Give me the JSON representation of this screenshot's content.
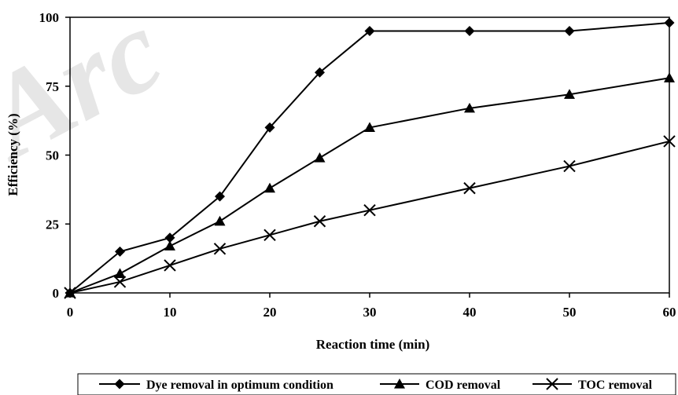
{
  "chart_data": {
    "type": "line",
    "watermark": "Arc",
    "xlabel": "Reaction time (min)",
    "ylabel": "Efficiency (%)",
    "xlim": [
      0,
      60
    ],
    "ylim": [
      0,
      100
    ],
    "x_ticks": [
      0,
      10,
      20,
      30,
      40,
      50,
      60
    ],
    "y_ticks": [
      0,
      25,
      50,
      75,
      100
    ],
    "grid": false,
    "legend_position": "bottom",
    "series": [
      {
        "name": "Dye removal in optimum condition",
        "marker": "diamond",
        "x": [
          0,
          5,
          10,
          15,
          20,
          25,
          30,
          40,
          50,
          60
        ],
        "values": [
          0,
          15,
          20,
          35,
          60,
          80,
          95,
          95,
          95,
          98
        ]
      },
      {
        "name": "COD removal",
        "marker": "triangle",
        "x": [
          0,
          5,
          10,
          15,
          20,
          25,
          30,
          40,
          50,
          60
        ],
        "values": [
          0,
          7,
          17,
          26,
          38,
          49,
          60,
          67,
          72,
          78
        ]
      },
      {
        "name": "TOC removal",
        "marker": "cross",
        "x": [
          0,
          5,
          10,
          15,
          20,
          25,
          30,
          40,
          50,
          60
        ],
        "values": [
          0,
          4,
          10,
          16,
          21,
          26,
          30,
          38,
          46,
          55
        ]
      }
    ]
  }
}
